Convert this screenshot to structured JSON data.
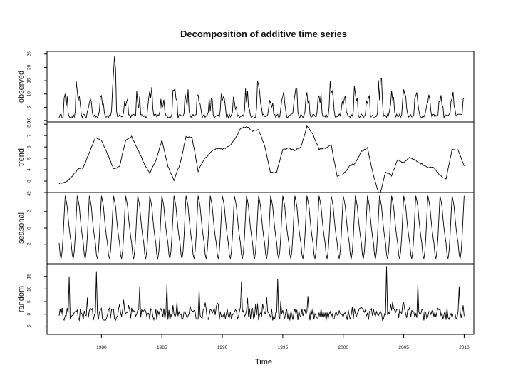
{
  "chart_data": {
    "type": "line",
    "title": "Decomposition of additive time series",
    "xlabel": "Time",
    "x_ticks": [
      1980,
      1985,
      1990,
      1995,
      2000,
      2005,
      2010
    ],
    "x_tick_labels": [
      "1980",
      "1985",
      "1990",
      "1995",
      "2000",
      "2005",
      "2010"
    ],
    "xlim": [
      1975.5,
      2010.8
    ],
    "x_start": 1976.5,
    "x_end": 2010.0,
    "frequency": 12,
    "line_color": "#000000",
    "panels": [
      {
        "name": "observed",
        "ylabel": "observed",
        "ylim": [
          -0.5,
          26
        ],
        "yticks": [
          0,
          5,
          10,
          15,
          20,
          25
        ],
        "ytick_labels": [
          "0.0",
          "5",
          "10",
          "15",
          "20",
          "25"
        ],
        "series": {
          "kind": "seasonal_spikes",
          "base": 1.0,
          "spike_peaks": [
            9,
            13,
            8,
            12,
            22,
            10,
            9,
            14,
            8,
            18,
            11,
            10,
            7,
            15,
            9,
            12,
            16,
            8,
            10,
            14,
            9,
            11,
            20,
            8,
            13,
            9,
            15,
            10,
            12,
            9,
            8,
            10,
            9,
            11,
            8,
            25,
            9,
            10,
            8,
            12,
            9,
            14,
            8,
            11,
            10
          ],
          "notes": "monthly observations, yearly peaks roughly 5 to 25"
        }
      },
      {
        "name": "trend",
        "ylabel": "trend",
        "ylim": [
          2,
          8.2
        ],
        "yticks": [
          2,
          3,
          4,
          5,
          6,
          7,
          8
        ],
        "ytick_labels": [
          "2",
          "3",
          "4",
          "5",
          "6",
          "7",
          "8.0"
        ],
        "series": {
          "kind": "knots",
          "x": [
            1976.5,
            1977.0,
            1977.5,
            1978.0,
            1978.5,
            1979.0,
            1979.5,
            1980.0,
            1980.5,
            1981.0,
            1981.5,
            1982.0,
            1982.5,
            1983.0,
            1983.5,
            1984.0,
            1984.5,
            1985.0,
            1985.5,
            1986.0,
            1986.5,
            1987.0,
            1987.5,
            1988.0,
            1988.5,
            1989.0,
            1989.5,
            1990.0,
            1990.5,
            1991.0,
            1991.5,
            1992.0,
            1992.5,
            1993.0,
            1993.5,
            1994.0,
            1994.5,
            1995.0,
            1995.5,
            1996.0,
            1996.5,
            1997.0,
            1997.5,
            1998.0,
            1998.5,
            1999.0,
            1999.5,
            2000.0,
            2000.5,
            2001.0,
            2001.5,
            2002.0,
            2002.5,
            2003.0,
            2003.5,
            2004.0,
            2004.5,
            2005.0,
            2005.5,
            2006.0,
            2006.5,
            2007.0,
            2007.5,
            2008.0,
            2008.5,
            2009.0,
            2009.5,
            2010.0
          ],
          "y": [
            2.8,
            2.9,
            3.3,
            4.0,
            4.2,
            5.5,
            6.8,
            6.6,
            5.4,
            4.1,
            4.3,
            6.6,
            6.9,
            5.8,
            4.6,
            3.7,
            4.8,
            6.6,
            4.3,
            3.1,
            4.5,
            6.9,
            6.8,
            3.9,
            4.9,
            5.5,
            5.9,
            5.8,
            6.0,
            6.6,
            7.6,
            7.8,
            7.4,
            7.5,
            6.1,
            3.7,
            3.8,
            5.8,
            5.9,
            5.7,
            6.0,
            7.8,
            7.1,
            5.8,
            5.9,
            6.2,
            3.4,
            3.6,
            4.3,
            4.6,
            5.6,
            5.9,
            3.5,
            1.7,
            3.8,
            3.5,
            4.9,
            4.6,
            5.1,
            4.8,
            4.5,
            4.2,
            4.2,
            3.5,
            3.2,
            5.8,
            5.7,
            4.3
          ]
        }
      },
      {
        "name": "seasonal",
        "ylabel": "seasonal",
        "ylim": [
          -4.3,
          4.3
        ],
        "yticks": [
          -2,
          0,
          2,
          4
        ],
        "ytick_labels": [
          "-2",
          "0",
          "2",
          "4"
        ],
        "series": {
          "kind": "periodic",
          "monthly_pattern": [
            -1.8,
            -3.2,
            -3.7,
            -2.8,
            -1.0,
            1.5,
            3.9,
            3.3,
            2.6,
            1.2,
            0.0,
            -1.0
          ]
        }
      },
      {
        "name": "random",
        "ylabel": "random",
        "ylim": [
          -8,
          20
        ],
        "yticks": [
          -5,
          0,
          5,
          10,
          15
        ],
        "ytick_labels": [
          "-5",
          "0",
          "5",
          "10",
          "15"
        ],
        "series": {
          "kind": "noise",
          "amplitude": 2.5,
          "spikes": [
            [
              1977.3,
              15
            ],
            [
              1979.6,
              17
            ],
            [
              1983.2,
              11
            ],
            [
              1985.4,
              12
            ],
            [
              1988.1,
              10
            ],
            [
              1991.6,
              13
            ],
            [
              1994.6,
              14
            ],
            [
              2003.6,
              19
            ],
            [
              2006.2,
              12
            ],
            [
              2009.6,
              11
            ]
          ]
        }
      }
    ]
  }
}
